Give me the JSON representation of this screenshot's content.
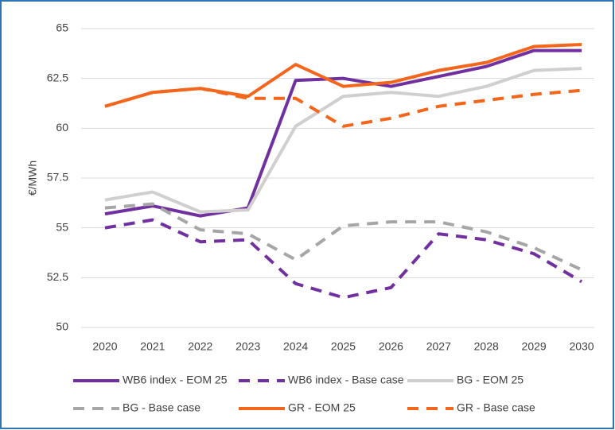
{
  "chart_data": {
    "type": "line",
    "y_label": "€/MWh",
    "categories": [
      "2020",
      "2021",
      "2022",
      "2023",
      "2024",
      "2025",
      "2026",
      "2027",
      "2028",
      "2029",
      "2030"
    ],
    "ylim": [
      50,
      65
    ],
    "yticks": [
      50,
      52.5,
      55,
      57.5,
      60,
      62.5,
      65
    ],
    "grid": true,
    "series": [
      {
        "name": "WB6 index - EOM 25",
        "color": "#7030a0",
        "style": "solid",
        "values": [
          55.7,
          56.1,
          55.6,
          56.0,
          62.4,
          62.5,
          62.1,
          62.6,
          63.1,
          63.9,
          63.9
        ]
      },
      {
        "name": "WB6 index - Base case",
        "color": "#7030a0",
        "style": "dashed",
        "values": [
          55.0,
          55.4,
          54.3,
          54.4,
          52.2,
          51.5,
          52.0,
          54.7,
          54.4,
          53.7,
          52.3
        ]
      },
      {
        "name": "BG - EOM 25",
        "color": "#d0cece",
        "style": "solid",
        "values": [
          56.4,
          56.8,
          55.8,
          55.9,
          60.1,
          61.6,
          61.8,
          61.6,
          62.1,
          62.9,
          63.0
        ]
      },
      {
        "name": "BG - Base case",
        "color": "#a6a6a6",
        "style": "dashed",
        "values": [
          56.0,
          56.2,
          54.9,
          54.7,
          53.4,
          55.1,
          55.3,
          55.3,
          54.8,
          54.0,
          52.9
        ]
      },
      {
        "name": "GR - EOM 25",
        "color": "#f4661b",
        "style": "solid",
        "values": [
          61.1,
          61.8,
          62.0,
          61.6,
          63.2,
          62.1,
          62.3,
          62.9,
          63.3,
          64.1,
          64.2
        ]
      },
      {
        "name": "GR - Base case",
        "color": "#f4661b",
        "style": "dashed",
        "values": [
          61.1,
          61.8,
          62.0,
          61.5,
          61.5,
          60.1,
          60.5,
          61.1,
          61.4,
          61.7,
          61.9
        ]
      }
    ]
  }
}
